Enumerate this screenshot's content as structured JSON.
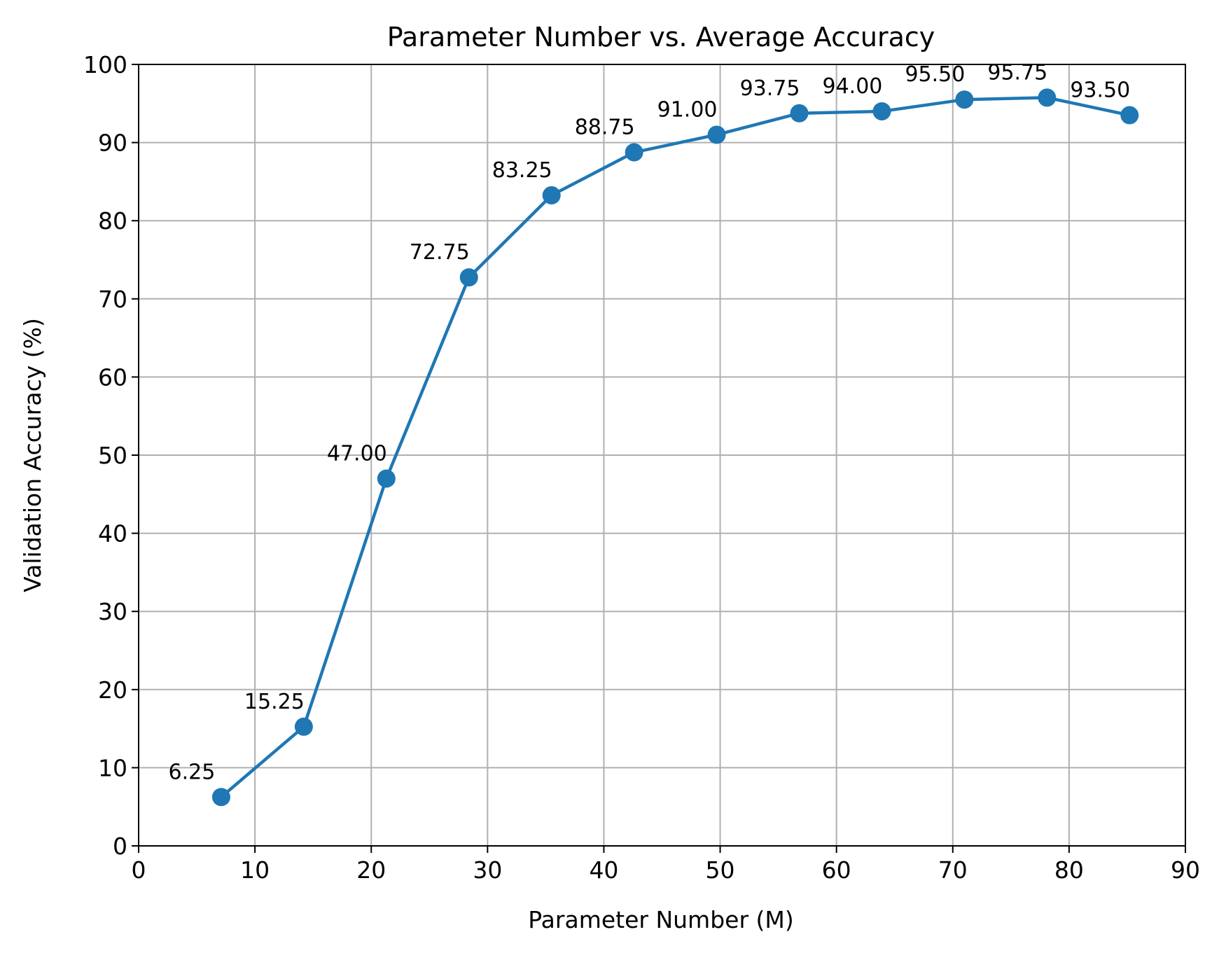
{
  "chart_data": {
    "type": "line",
    "title": "Parameter Number vs. Average Accuracy",
    "xlabel": "Parameter Number (M)",
    "ylabel": "Validation Accuracy (%)",
    "xlim": [
      0,
      90
    ],
    "ylim": [
      0,
      100
    ],
    "xticks": [
      0,
      10,
      20,
      30,
      40,
      50,
      60,
      70,
      80,
      90
    ],
    "yticks": [
      0,
      10,
      20,
      30,
      40,
      50,
      60,
      70,
      80,
      90,
      100
    ],
    "grid": true,
    "color": "#1f77b4",
    "marker": "circle",
    "series": [
      {
        "x": [
          7.1,
          14.2,
          21.3,
          28.4,
          35.5,
          42.6,
          49.7,
          56.8,
          63.9,
          71.0,
          78.1,
          85.2
        ],
        "y": [
          6.25,
          15.25,
          47.0,
          72.75,
          83.25,
          88.75,
          91.0,
          93.75,
          94.0,
          95.5,
          95.75,
          93.5
        ],
        "labels": [
          "6.25",
          "15.25",
          "47.00",
          "72.75",
          "83.25",
          "88.75",
          "91.00",
          "93.75",
          "94.00",
          "95.50",
          "95.75",
          "93.50"
        ]
      }
    ]
  }
}
